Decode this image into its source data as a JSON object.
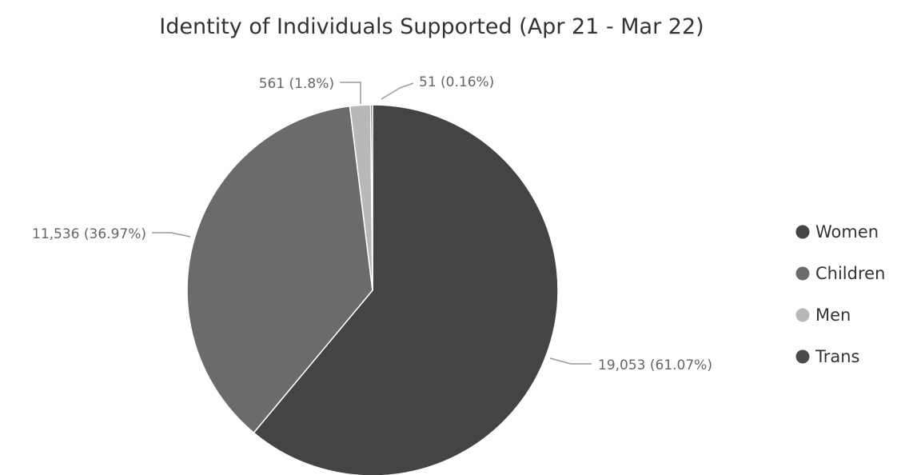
{
  "chart_data": {
    "type": "pie",
    "title": "Identity of Individuals Supported (Apr 21 - Mar 22)",
    "categories": [
      "Women",
      "Children",
      "Men",
      "Trans"
    ],
    "values": [
      19053,
      11536,
      561,
      51
    ],
    "percentages": [
      "61.07%",
      "36.97%",
      "1.8%",
      "0.16%"
    ],
    "data_labels": [
      "19,053 (61.07%)",
      "11,536 (36.97%)",
      "561 (1.8%)",
      "51 (0.16%)"
    ],
    "colors": [
      "#444444",
      "#6b6b6b",
      "#b8b8b8",
      "#4a4a4a"
    ],
    "legend": {
      "position": "right",
      "entries": [
        "Women",
        "Children",
        "Men",
        "Trans"
      ]
    },
    "start_angle": "12 o'clock",
    "direction": "clockwise"
  }
}
